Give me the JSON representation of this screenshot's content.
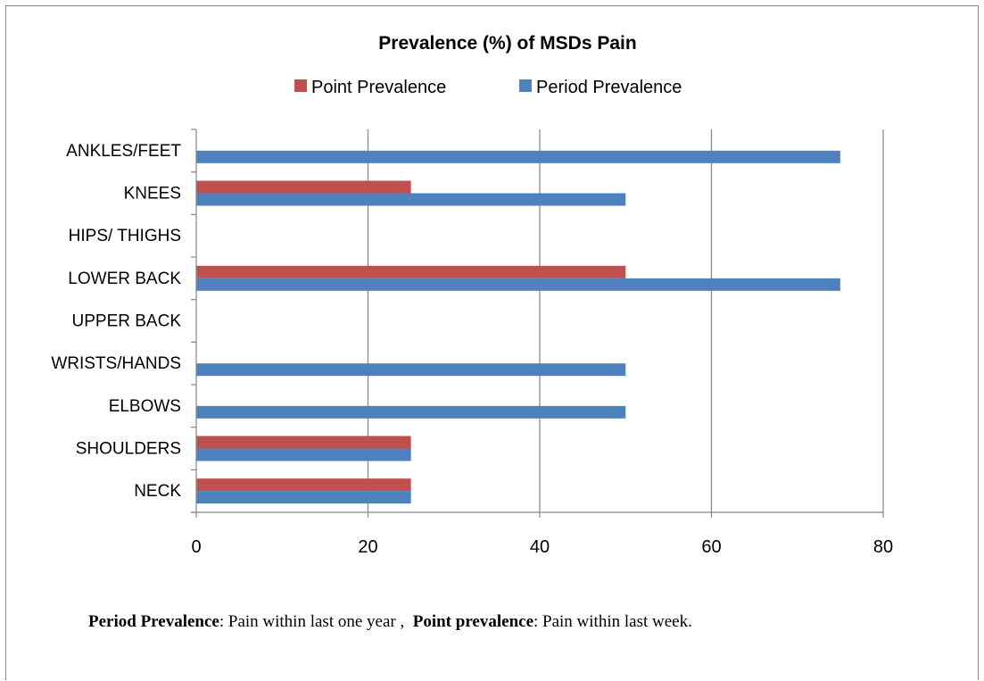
{
  "chart_data": {
    "type": "bar",
    "orientation": "horizontal",
    "title": "Prevalence (%) of MSDs Pain",
    "categories": [
      "NECK",
      "SHOULDERS",
      "ELBOWS",
      "WRISTS/HANDS",
      "UPPER BACK",
      "LOWER BACK",
      "HIPS/ THIGHS",
      "KNEES",
      "ANKLES/FEET"
    ],
    "series": [
      {
        "name": "Point Prevalence",
        "color": "#C0504D",
        "values": [
          25,
          25,
          0,
          0,
          0,
          50,
          0,
          25,
          0
        ]
      },
      {
        "name": "Period Prevalence",
        "color": "#4F81BD",
        "values": [
          25,
          25,
          50,
          50,
          0,
          75,
          0,
          50,
          75
        ]
      }
    ],
    "xlim": [
      0,
      80
    ],
    "xticks": [
      0,
      20,
      40,
      60,
      80
    ],
    "xlabel": "",
    "ylabel": "",
    "grid": "vertical",
    "legend_position": "top"
  },
  "footnote": {
    "term1": "Period Prevalence",
    "def1": ": Pain within last one year ,",
    "term2": "Point prevalence",
    "def2": ": Pain within last week."
  }
}
